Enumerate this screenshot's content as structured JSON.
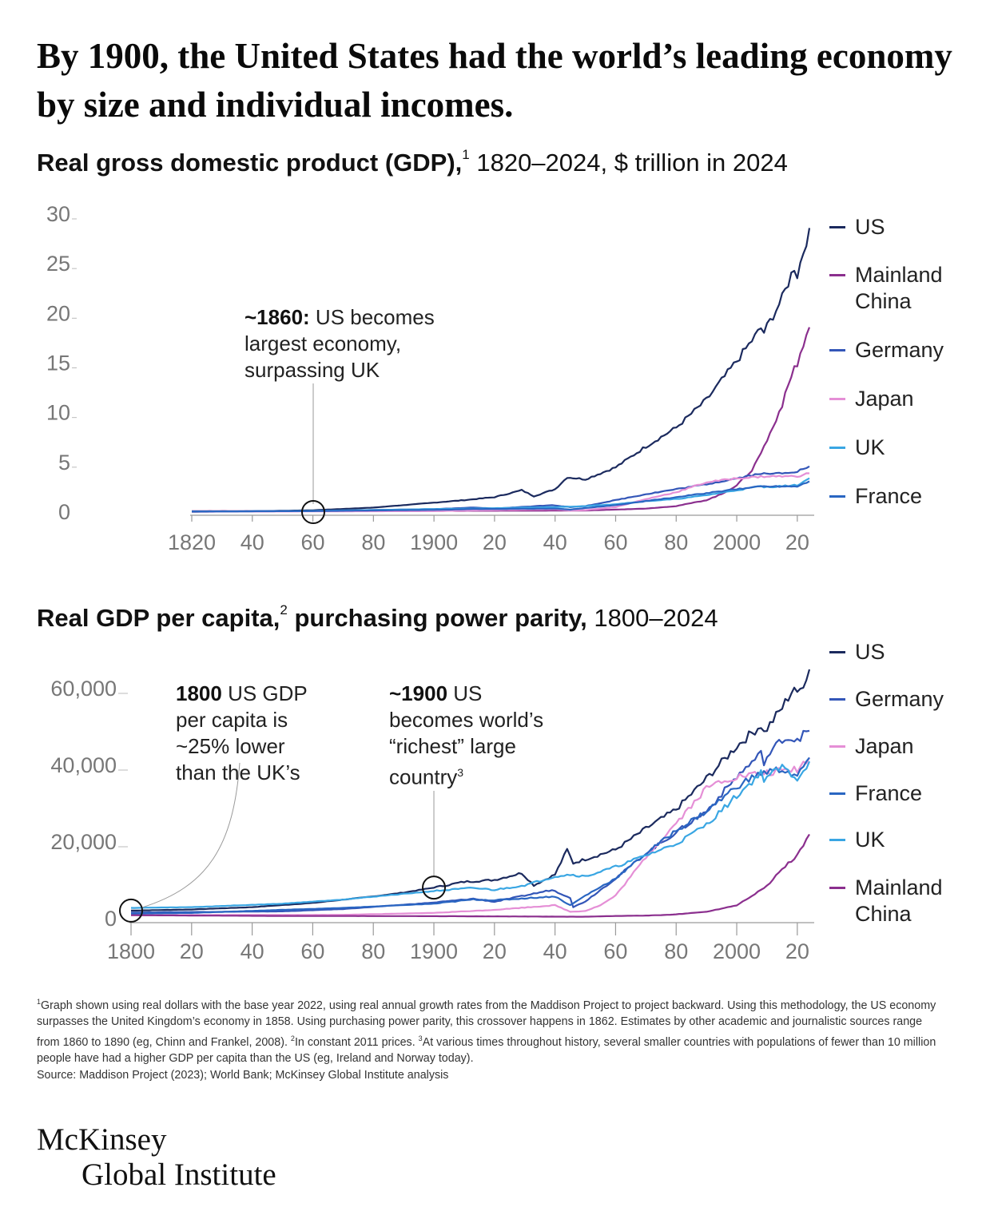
{
  "headline": "By 1900, the United States had the world’s leading economy by size and individual incomes.",
  "chart1": {
    "subtitle_bold": "Real gross domestic product (GDP),",
    "subtitle_sup": "1",
    "subtitle_rest": " 1820–2024, $ trillion in 2024",
    "annotation": {
      "bold": "~1860:",
      "text1": " US becomes",
      "text2": "largest economy,",
      "text3": "surpassing UK"
    },
    "legend": [
      "US",
      "Mainland China",
      "Germany",
      "Japan",
      "UK",
      "France"
    ]
  },
  "chart2": {
    "subtitle_bold": "Real GDP per capita,",
    "subtitle_sup": "2",
    "subtitle_bold2": " purchasing power parity,",
    "subtitle_rest": " 1800–2024",
    "annotation1": {
      "bold": "1800",
      "text1": " US GDP",
      "text2": "per capita is",
      "text3": "~25% lower",
      "text4": "than the UK’s"
    },
    "annotation2": {
      "bold": "~1900",
      "text1": " US",
      "text2": "becomes world’s",
      "text3": "“richest” large",
      "text4": "country",
      "sup": "3"
    },
    "legend": [
      "US",
      "Germany",
      "Japan",
      "France",
      "UK",
      "Mainland China"
    ]
  },
  "colors": {
    "US": "#1b2a5e",
    "China": "#8b2f8e",
    "Germany": "#3356b8",
    "Japan": "#e58fd6",
    "UK": "#39a6e3",
    "France": "#2a66c2",
    "axis": "#9a9a9a",
    "tick_text": "#777777"
  },
  "chart_data": [
    {
      "type": "line",
      "title": "Real gross domestic product (GDP), 1820–2024, $ trillion in 2024",
      "xlabel": "",
      "ylabel": "",
      "xlim": [
        1820,
        2024
      ],
      "ylim": [
        0,
        30
      ],
      "yticks": [
        0,
        5,
        10,
        15,
        20,
        25,
        30
      ],
      "ytick_labels": [
        "0",
        "5",
        "10",
        "15",
        "20",
        "25",
        "30"
      ],
      "xticks": [
        1820,
        1840,
        1860,
        1880,
        1900,
        1920,
        1940,
        1960,
        1980,
        2000,
        2020
      ],
      "xtick_labels": [
        "1820",
        "40",
        "60",
        "80",
        "1900",
        "20",
        "40",
        "60",
        "80",
        "2000",
        "20"
      ],
      "series": [
        {
          "name": "US",
          "x": [
            1820,
            1840,
            1860,
            1880,
            1900,
            1910,
            1920,
            1929,
            1933,
            1940,
            1944,
            1950,
            1960,
            1970,
            1980,
            1990,
            2000,
            2008,
            2009,
            2015,
            2019,
            2020,
            2024
          ],
          "y": [
            0.03,
            0.08,
            0.18,
            0.45,
            0.95,
            1.2,
            1.5,
            2.2,
            1.6,
            2.3,
            3.5,
            3.3,
            4.5,
            6.6,
            8.5,
            11.3,
            15.2,
            18.5,
            18.1,
            21.5,
            24.7,
            23.9,
            28.6
          ]
        },
        {
          "name": "Mainland China",
          "x": [
            1820,
            1870,
            1900,
            1950,
            1960,
            1970,
            1980,
            1990,
            1995,
            2000,
            2005,
            2010,
            2015,
            2019,
            2020,
            2024
          ],
          "y": [
            0.1,
            0.1,
            0.12,
            0.15,
            0.25,
            0.35,
            0.6,
            1.2,
            1.8,
            2.7,
            4.2,
            7.2,
            10.8,
            14.6,
            14.9,
            18.6
          ]
        },
        {
          "name": "Germany",
          "x": [
            1820,
            1860,
            1900,
            1913,
            1920,
            1939,
            1945,
            1950,
            1960,
            1970,
            1980,
            1990,
            2000,
            2008,
            2010,
            2020,
            2024
          ],
          "y": [
            0.05,
            0.1,
            0.3,
            0.45,
            0.35,
            0.7,
            0.5,
            0.6,
            1.2,
            1.8,
            2.3,
            2.8,
            3.4,
            3.9,
            3.8,
            4.1,
            4.6
          ]
        },
        {
          "name": "Japan",
          "x": [
            1820,
            1900,
            1940,
            1945,
            1950,
            1960,
            1970,
            1980,
            1990,
            1995,
            2000,
            2010,
            2020,
            2024
          ],
          "y": [
            0.03,
            0.1,
            0.3,
            0.15,
            0.2,
            0.5,
            1.3,
            2.0,
            3.0,
            3.2,
            3.4,
            3.6,
            3.6,
            3.9
          ]
        },
        {
          "name": "UK",
          "x": [
            1820,
            1860,
            1900,
            1913,
            1940,
            1945,
            1950,
            1960,
            1970,
            1980,
            1990,
            2000,
            2008,
            2009,
            2020,
            2024
          ],
          "y": [
            0.05,
            0.12,
            0.3,
            0.35,
            0.5,
            0.55,
            0.6,
            0.8,
            1.1,
            1.3,
            1.7,
            2.2,
            2.6,
            2.5,
            2.7,
            3.4
          ]
        },
        {
          "name": "France",
          "x": [
            1820,
            1860,
            1900,
            1913,
            1940,
            1945,
            1950,
            1960,
            1970,
            1980,
            1990,
            2000,
            2008,
            2020,
            2024
          ],
          "y": [
            0.05,
            0.1,
            0.22,
            0.3,
            0.35,
            0.25,
            0.4,
            0.7,
            1.1,
            1.5,
            1.9,
            2.3,
            2.6,
            2.6,
            3.1
          ]
        }
      ],
      "annotations": [
        {
          "x": 1860,
          "text": "~1860: US becomes largest economy, surpassing UK"
        }
      ]
    },
    {
      "type": "line",
      "title": "Real GDP per capita, purchasing power parity, 1800–2024",
      "xlabel": "",
      "ylabel": "",
      "xlim": [
        1800,
        2024
      ],
      "ylim": [
        0,
        65000
      ],
      "yticks": [
        0,
        20000,
        40000,
        60000
      ],
      "ytick_labels": [
        "0",
        "20,000",
        "40,000",
        "60,000"
      ],
      "xticks": [
        1800,
        1820,
        1840,
        1860,
        1880,
        1900,
        1920,
        1940,
        1960,
        1980,
        2000,
        2020
      ],
      "xtick_labels": [
        "1800",
        "20",
        "40",
        "60",
        "80",
        "1900",
        "20",
        "40",
        "60",
        "80",
        "2000",
        "20"
      ],
      "series": [
        {
          "name": "US",
          "x": [
            1800,
            1820,
            1840,
            1860,
            1880,
            1890,
            1900,
            1910,
            1920,
            1929,
            1933,
            1940,
            1944,
            1946,
            1950,
            1960,
            1970,
            1980,
            1990,
            2000,
            2008,
            2009,
            2015,
            2019,
            2020,
            2024
          ],
          "y": [
            2100,
            2400,
            3000,
            4100,
            5800,
            6800,
            8100,
            9600,
            10100,
            11900,
            8700,
            11500,
            18000,
            14500,
            15500,
            18000,
            23500,
            28500,
            36500,
            45000,
            50500,
            48500,
            55000,
            60500,
            58000,
            65000
          ]
        },
        {
          "name": "Germany",
          "x": [
            1800,
            1850,
            1870,
            1900,
            1913,
            1920,
            1939,
            1945,
            1946,
            1950,
            1960,
            1970,
            1980,
            1990,
            2000,
            2008,
            2009,
            2015,
            2020,
            2024
          ],
          "y": [
            1600,
            1900,
            2500,
            4200,
            5200,
            4400,
            7500,
            5500,
            3000,
            4500,
            10500,
            17000,
            22500,
            28000,
            37000,
            43000,
            41000,
            47000,
            47000,
            49000
          ]
        },
        {
          "name": "Japan",
          "x": [
            1800,
            1870,
            1900,
            1920,
            1940,
            1945,
            1950,
            1955,
            1960,
            1970,
            1980,
            1990,
            1995,
            2000,
            2010,
            2020,
            2024
          ],
          "y": [
            900,
            1000,
            1500,
            2300,
            3500,
            1800,
            2000,
            3500,
            6000,
            16000,
            25000,
            34000,
            36000,
            37000,
            38000,
            39000,
            42000
          ]
        },
        {
          "name": "France",
          "x": [
            1800,
            1820,
            1850,
            1870,
            1900,
            1913,
            1920,
            1940,
            1945,
            1950,
            1960,
            1970,
            1980,
            1990,
            2000,
            2008,
            2015,
            2020,
            2024
          ],
          "y": [
            1300,
            1500,
            2300,
            2800,
            3900,
            5000,
            4800,
            5800,
            3500,
            6000,
            10500,
            17000,
            23000,
            28000,
            34500,
            38000,
            39000,
            37000,
            42000
          ]
        },
        {
          "name": "UK",
          "x": [
            1800,
            1820,
            1850,
            1870,
            1900,
            1913,
            1920,
            1930,
            1940,
            1945,
            1950,
            1960,
            1970,
            1980,
            1990,
            2000,
            2008,
            2009,
            2015,
            2020,
            2024
          ],
          "y": [
            2800,
            3000,
            3900,
            5000,
            7200,
            8000,
            7500,
            8700,
            11000,
            11500,
            11000,
            13500,
            16500,
            19500,
            24500,
            32000,
            38000,
            36500,
            39500,
            36500,
            41000
          ]
        },
        {
          "name": "Mainland China",
          "x": [
            1800,
            1850,
            1900,
            1950,
            1960,
            1970,
            1978,
            1990,
            2000,
            2010,
            2015,
            2020,
            2024
          ],
          "y": [
            900,
            700,
            650,
            500,
            700,
            800,
            1000,
            1800,
            3500,
            8500,
            13000,
            16500,
            22000
          ]
        }
      ],
      "annotations": [
        {
          "x": 1800,
          "text": "1800 US GDP per capita is ~25% lower than the UK’s"
        },
        {
          "x": 1900,
          "text": "~1900 US becomes world’s “richest” large country"
        }
      ]
    }
  ],
  "footnotes": {
    "f1_sup": "1",
    "f1": "Graph shown using real dollars with the base year 2022, using real annual growth rates from the Maddison Project to project backward. Using this methodology, the US economy surpasses the United Kingdom’s economy in 1858. Using purchasing power parity, this crossover happens in 1862. Estimates by other academic and journalistic sources range from 1860 to 1890 (eg, Chinn and Frankel, 2008).",
    "f2_sup": "2",
    "f2": "In constant 2011 prices.",
    "f3_sup": "3",
    "f3": "At various times throughout history, several smaller countries with populations of fewer than 10 million people have had a higher GDP per capita than the US (eg, Ireland and Norway today).",
    "source": "Source: Maddison Project (2023); World Bank; McKinsey Global Institute analysis"
  },
  "logo": {
    "line1": "McKinsey",
    "line2": "Global Institute"
  }
}
